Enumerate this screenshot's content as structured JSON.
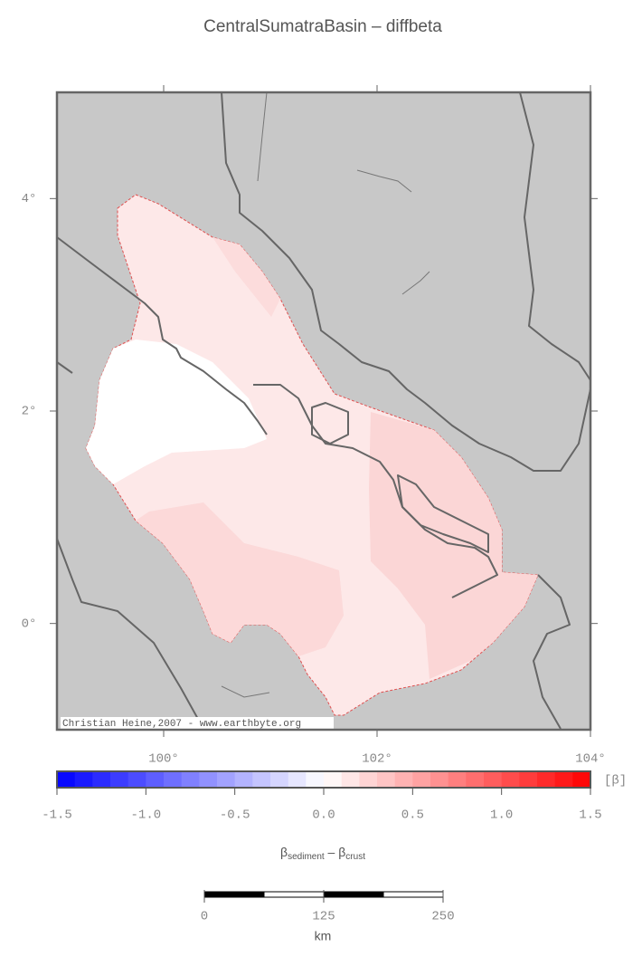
{
  "title": "CentralSumatraBasin – diffbeta",
  "map": {
    "xlim": [
      99,
      104
    ],
    "ylim": [
      -1,
      5
    ],
    "xticks": [
      {
        "value": 100,
        "label": "100°"
      },
      {
        "value": 102,
        "label": "102°"
      },
      {
        "value": 104,
        "label": "104°"
      }
    ],
    "yticks": [
      {
        "value": 0,
        "label": "0°"
      },
      {
        "value": 2,
        "label": "2°"
      },
      {
        "value": 4,
        "label": "4°"
      }
    ],
    "land_color": "#c8c8c8",
    "credit": "Christian Heine,2007 - www.earthbyte.org"
  },
  "colorbar": {
    "clim": [
      -1.5,
      1.5
    ],
    "step": 0.1,
    "low_color": "#0000ff",
    "mid_color": "#ffffff",
    "high_color": "#ff0000",
    "ticks": [
      {
        "value": -1.5,
        "label": "-1.5"
      },
      {
        "value": -1,
        "label": "-1.0"
      },
      {
        "value": -0.5,
        "label": "-0.5"
      },
      {
        "value": 0,
        "label": "0.0"
      },
      {
        "value": 0.5,
        "label": "0.5"
      },
      {
        "value": 1,
        "label": "1.0"
      },
      {
        "value": 1.5,
        "label": "1.5"
      }
    ],
    "unit": "[β]",
    "label_main": "β",
    "label_sub1": "sediment",
    "label_mid": " – β",
    "label_sub2": "crust"
  },
  "scale_bar": {
    "ticks": [
      0,
      125,
      250
    ],
    "unit": "km"
  }
}
